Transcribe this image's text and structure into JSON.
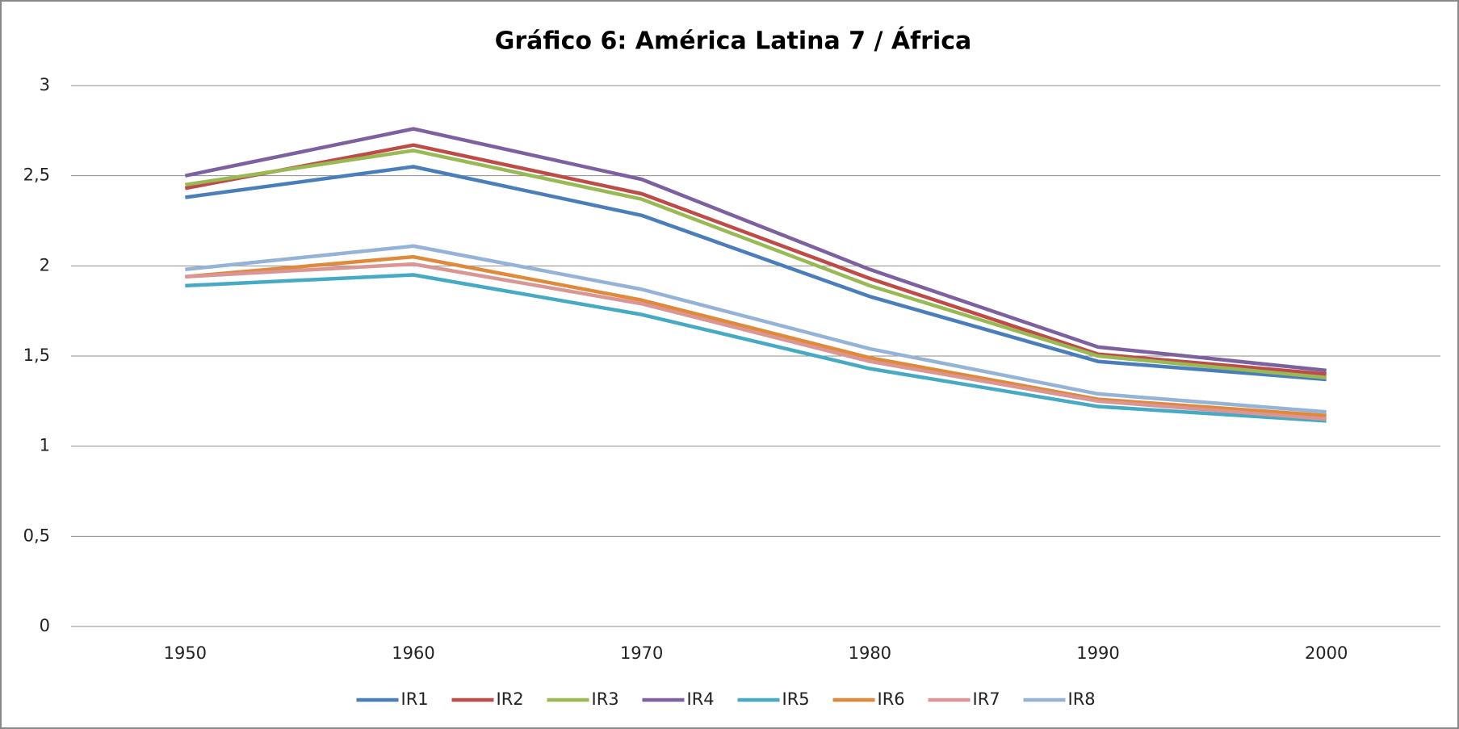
{
  "chart_data": {
    "type": "line",
    "title": "Gráfico 6: América Latina 7 / África",
    "categories": [
      "1950",
      "1960",
      "1970",
      "1980",
      "1990",
      "2000"
    ],
    "ylim": [
      0,
      3
    ],
    "yticks": [
      0,
      {
        "value": 0.5,
        "label": "0,5"
      },
      1,
      {
        "value": 1.5,
        "label": "1,5"
      },
      2,
      {
        "value": 2.5,
        "label": "2,5"
      },
      3
    ],
    "grid": true,
    "legend": "bottom",
    "series": [
      {
        "name": "IR1",
        "color": "#4a7ebb",
        "values": [
          2.38,
          2.55,
          2.28,
          1.83,
          1.47,
          1.37
        ]
      },
      {
        "name": "IR2",
        "color": "#be4b48",
        "values": [
          2.43,
          2.67,
          2.4,
          1.93,
          1.51,
          1.4
        ]
      },
      {
        "name": "IR3",
        "color": "#98b954",
        "values": [
          2.45,
          2.64,
          2.37,
          1.89,
          1.5,
          1.38
        ]
      },
      {
        "name": "IR4",
        "color": "#7d60a0",
        "values": [
          2.5,
          2.76,
          2.48,
          1.98,
          1.55,
          1.42
        ]
      },
      {
        "name": "IR5",
        "color": "#46aac5",
        "values": [
          1.89,
          1.95,
          1.73,
          1.43,
          1.22,
          1.14
        ]
      },
      {
        "name": "IR6",
        "color": "#e0893a",
        "values": [
          1.94,
          2.05,
          1.81,
          1.49,
          1.26,
          1.17
        ]
      },
      {
        "name": "IR7",
        "color": "#d99694",
        "values": [
          1.94,
          2.01,
          1.79,
          1.47,
          1.25,
          1.15
        ]
      },
      {
        "name": "IR8",
        "color": "#95b3d7",
        "values": [
          1.98,
          2.11,
          1.87,
          1.54,
          1.29,
          1.19
        ]
      }
    ]
  }
}
